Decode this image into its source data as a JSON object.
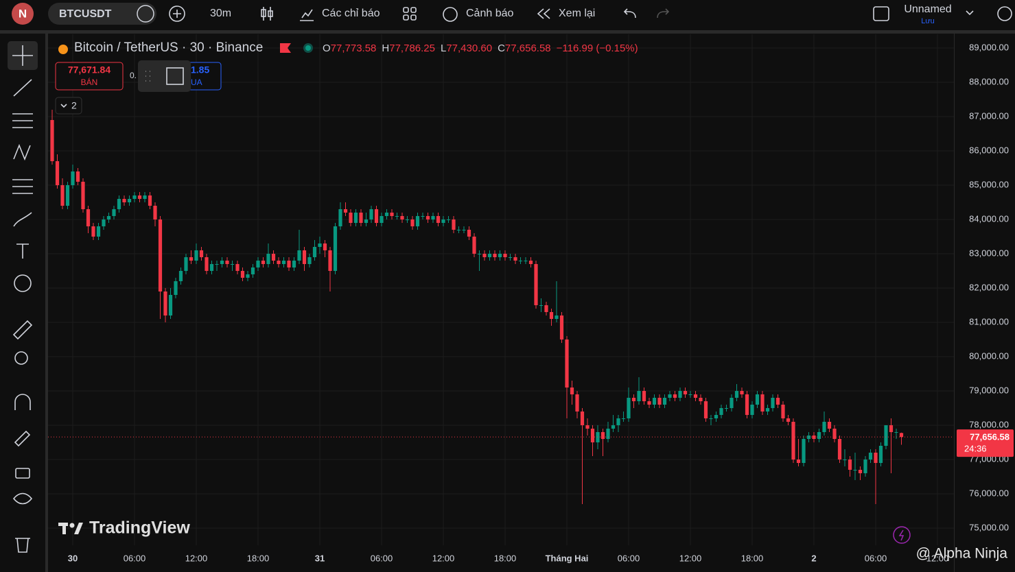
{
  "toolbar": {
    "avatar": "N",
    "symbol": "BTCUSDT",
    "interval": "30m",
    "indicators": "Các chỉ báo",
    "alerts": "Cảnh báo",
    "replay": "Xem lại",
    "layout_name": "Unnamed",
    "save": "Lưu"
  },
  "chart_data": {
    "type": "candlestick",
    "title": "Bitcoin / TetherUS · 30 · Binance",
    "ohlc_header": [
      {
        "key": "O",
        "value": "77,773.58"
      },
      {
        "key": "H",
        "value": "77,786.25"
      },
      {
        "key": "L",
        "value": "77,430.60"
      },
      {
        "key": "C",
        "value": "77,656.58"
      }
    ],
    "change": "−116.99 (−0.15%)",
    "sell": {
      "price": "77,671.84",
      "label": "BÁN"
    },
    "spread": "0.",
    "buy": {
      "price": "1.85",
      "label": "UA"
    },
    "indicator_count": "2",
    "up_color": "#089981",
    "down_color": "#f23645",
    "ohlc": [
      [
        86900,
        87200,
        85600,
        85700
      ],
      [
        85700,
        85900,
        84900,
        85000
      ],
      [
        85000,
        85200,
        84300,
        84400
      ],
      [
        84400,
        85100,
        84300,
        85000
      ],
      [
        85000,
        85600,
        84900,
        85400
      ],
      [
        85400,
        85500,
        85000,
        85100
      ],
      [
        85100,
        85200,
        84200,
        84300
      ],
      [
        84300,
        84400,
        83600,
        83800
      ],
      [
        83800,
        83900,
        83400,
        83500
      ],
      [
        83500,
        83900,
        83400,
        83800
      ],
      [
        83800,
        84100,
        83700,
        84000
      ],
      [
        84000,
        84200,
        83900,
        84100
      ],
      [
        84100,
        84400,
        84000,
        84300
      ],
      [
        84300,
        84700,
        84200,
        84600
      ],
      [
        84600,
        84700,
        84400,
        84500
      ],
      [
        84500,
        84700,
        84400,
        84600
      ],
      [
        84600,
        84800,
        84500,
        84700
      ],
      [
        84700,
        84800,
        84500,
        84600
      ],
      [
        84600,
        84800,
        84500,
        84700
      ],
      [
        84700,
        84800,
        84300,
        84400
      ],
      [
        84400,
        84500,
        83800,
        84000
      ],
      [
        84000,
        84100,
        81100,
        81900
      ],
      [
        81900,
        82000,
        81000,
        81200
      ],
      [
        81200,
        82000,
        81100,
        81800
      ],
      [
        81800,
        82300,
        81700,
        82200
      ],
      [
        82200,
        82600,
        82100,
        82500
      ],
      [
        82500,
        83000,
        82400,
        82900
      ],
      [
        82900,
        83100,
        82700,
        82800
      ],
      [
        82800,
        83300,
        82700,
        83100
      ],
      [
        83100,
        83200,
        82800,
        82900
      ],
      [
        82900,
        83000,
        82400,
        82500
      ],
      [
        82500,
        82800,
        82400,
        82700
      ],
      [
        82700,
        82800,
        82500,
        82700
      ],
      [
        82700,
        82900,
        82600,
        82800
      ],
      [
        82800,
        82900,
        82600,
        82700
      ],
      [
        82700,
        82800,
        82500,
        82700
      ],
      [
        82700,
        82800,
        82400,
        82500
      ],
      [
        82500,
        82600,
        82200,
        82300
      ],
      [
        82300,
        82500,
        82200,
        82400
      ],
      [
        82400,
        82700,
        82300,
        82600
      ],
      [
        82600,
        82900,
        82500,
        82800
      ],
      [
        82800,
        82900,
        82600,
        82700
      ],
      [
        82700,
        83300,
        82600,
        83000
      ],
      [
        83000,
        83100,
        82700,
        82800
      ],
      [
        82800,
        82900,
        82600,
        82700
      ],
      [
        82700,
        82900,
        82600,
        82800
      ],
      [
        82800,
        82900,
        82500,
        82600
      ],
      [
        82600,
        82900,
        82500,
        82800
      ],
      [
        82800,
        83700,
        82700,
        83100
      ],
      [
        83100,
        83200,
        82500,
        82700
      ],
      [
        82700,
        83000,
        82600,
        82900
      ],
      [
        82900,
        83400,
        82800,
        83200
      ],
      [
        83200,
        83500,
        83000,
        83300
      ],
      [
        83300,
        83400,
        82900,
        83100
      ],
      [
        83100,
        83200,
        81900,
        82500
      ],
      [
        82500,
        83900,
        82400,
        83800
      ],
      [
        83800,
        84500,
        83700,
        84300
      ],
      [
        84300,
        84500,
        84100,
        84200
      ],
      [
        84200,
        84300,
        83800,
        83900
      ],
      [
        83900,
        84300,
        83800,
        84200
      ],
      [
        84200,
        84300,
        83800,
        83900
      ],
      [
        83900,
        84200,
        83800,
        84000
      ],
      [
        84000,
        84400,
        83900,
        84300
      ],
      [
        84300,
        84400,
        83800,
        83900
      ],
      [
        83900,
        84200,
        83800,
        84100
      ],
      [
        84100,
        84300,
        84000,
        84200
      ],
      [
        84200,
        84300,
        84000,
        84100
      ],
      [
        84100,
        84200,
        84000,
        84100
      ],
      [
        84100,
        84200,
        83900,
        84000
      ],
      [
        84000,
        84100,
        83900,
        84000
      ],
      [
        84000,
        84100,
        83700,
        83800
      ],
      [
        83800,
        84200,
        83700,
        84100
      ],
      [
        84100,
        84200,
        84000,
        84100
      ],
      [
        84100,
        84200,
        83900,
        84000
      ],
      [
        84000,
        84200,
        83900,
        84100
      ],
      [
        84100,
        84200,
        83800,
        83900
      ],
      [
        83900,
        84100,
        83800,
        84000
      ],
      [
        84000,
        84100,
        83900,
        84000
      ],
      [
        84000,
        84100,
        83600,
        83700
      ],
      [
        83700,
        83800,
        83600,
        83700
      ],
      [
        83700,
        83800,
        83600,
        83700
      ],
      [
        83700,
        83800,
        83400,
        83500
      ],
      [
        83500,
        83600,
        82900,
        83000
      ],
      [
        83000,
        83100,
        82500,
        83000
      ],
      [
        83000,
        83100,
        82800,
        82900
      ],
      [
        82900,
        83100,
        82800,
        83000
      ],
      [
        83000,
        83100,
        82800,
        82900
      ],
      [
        82900,
        83100,
        82800,
        83000
      ],
      [
        83000,
        83100,
        82800,
        82900
      ],
      [
        82900,
        83000,
        82800,
        82900
      ],
      [
        82900,
        83000,
        82700,
        82800
      ],
      [
        82800,
        82900,
        82700,
        82800
      ],
      [
        82800,
        82900,
        82700,
        82800
      ],
      [
        82800,
        82900,
        82600,
        82700
      ],
      [
        82700,
        82800,
        81400,
        81500
      ],
      [
        81500,
        81700,
        81300,
        81500
      ],
      [
        81500,
        81600,
        81200,
        81300
      ],
      [
        81300,
        81400,
        80900,
        81100
      ],
      [
        81100,
        82200,
        81000,
        81200
      ],
      [
        81200,
        81300,
        80400,
        80500
      ],
      [
        80500,
        80600,
        78200,
        79100
      ],
      [
        79100,
        79300,
        78600,
        78900
      ],
      [
        78900,
        79000,
        78200,
        78400
      ],
      [
        78400,
        78500,
        75700,
        78000
      ],
      [
        78000,
        78200,
        77700,
        77900
      ],
      [
        77900,
        78000,
        77100,
        77500
      ],
      [
        77500,
        78000,
        77300,
        77800
      ],
      [
        77800,
        77900,
        77100,
        77600
      ],
      [
        77600,
        78100,
        77500,
        77900
      ],
      [
        77900,
        78300,
        77800,
        78000
      ],
      [
        78000,
        78300,
        77800,
        78200
      ],
      [
        78200,
        78400,
        78100,
        78200
      ],
      [
        78200,
        79100,
        78100,
        78800
      ],
      [
        78800,
        78900,
        78500,
        78700
      ],
      [
        78700,
        79400,
        78600,
        79000
      ],
      [
        79000,
        79100,
        78600,
        78700
      ],
      [
        78700,
        78800,
        78500,
        78600
      ],
      [
        78600,
        78900,
        78500,
        78800
      ],
      [
        78800,
        78900,
        78500,
        78600
      ],
      [
        78600,
        78900,
        78500,
        78800
      ],
      [
        78800,
        79000,
        78700,
        78900
      ],
      [
        78900,
        79000,
        78700,
        78800
      ],
      [
        78800,
        79100,
        78700,
        79000
      ],
      [
        79000,
        79100,
        78800,
        78900
      ],
      [
        78900,
        79000,
        78800,
        78900
      ],
      [
        78900,
        79000,
        78700,
        78800
      ],
      [
        78800,
        78900,
        78600,
        78700
      ],
      [
        78700,
        78800,
        78100,
        78200
      ],
      [
        78200,
        78300,
        78000,
        78200
      ],
      [
        78200,
        78400,
        78100,
        78300
      ],
      [
        78300,
        78600,
        78200,
        78500
      ],
      [
        78500,
        78600,
        78400,
        78500
      ],
      [
        78500,
        78900,
        78400,
        78800
      ],
      [
        78800,
        79200,
        78700,
        79000
      ],
      [
        79000,
        79100,
        78800,
        78900
      ],
      [
        78900,
        79000,
        78200,
        78300
      ],
      [
        78300,
        78700,
        78200,
        78600
      ],
      [
        78600,
        79000,
        78500,
        78900
      ],
      [
        78900,
        79000,
        78300,
        78400
      ],
      [
        78400,
        78600,
        78300,
        78500
      ],
      [
        78500,
        78900,
        78400,
        78800
      ],
      [
        78800,
        78900,
        78500,
        78600
      ],
      [
        78600,
        78700,
        78100,
        78200
      ],
      [
        78200,
        78300,
        78000,
        78100
      ],
      [
        78100,
        78200,
        76900,
        77000
      ],
      [
        77000,
        77600,
        76800,
        76900
      ],
      [
        76900,
        77700,
        76800,
        77600
      ],
      [
        77600,
        77800,
        77500,
        77700
      ],
      [
        77700,
        77800,
        77500,
        77600
      ],
      [
        77600,
        77900,
        77500,
        77800
      ],
      [
        77800,
        78400,
        77700,
        78100
      ],
      [
        78100,
        78200,
        77800,
        77900
      ],
      [
        77900,
        78000,
        77500,
        77600
      ],
      [
        77600,
        77700,
        76900,
        77000
      ],
      [
        77000,
        77300,
        76800,
        77000
      ],
      [
        77000,
        77100,
        76500,
        76700
      ],
      [
        76700,
        77200,
        76400,
        76700
      ],
      [
        76700,
        76800,
        76400,
        76600
      ],
      [
        76600,
        77100,
        76500,
        77000
      ],
      [
        77000,
        77300,
        76900,
        77200
      ],
      [
        77200,
        77300,
        75700,
        76900
      ],
      [
        76900,
        77500,
        76800,
        77400
      ],
      [
        77400,
        78000,
        77300,
        78000
      ],
      [
        78000,
        78200,
        76600,
        77800
      ],
      [
        77800,
        77900,
        77600,
        77800
      ],
      [
        77773.58,
        77786.25,
        77430.6,
        77656.58
      ]
    ],
    "ylim": [
      74500,
      89400
    ],
    "yticks": [
      {
        "value": 75000,
        "label": "75,000.00"
      },
      {
        "value": 76000,
        "label": "76,000.00"
      },
      {
        "value": 77000,
        "label": "77,000.00"
      },
      {
        "value": 78000,
        "label": "78,000.00"
      },
      {
        "value": 79000,
        "label": "79,000.00"
      },
      {
        "value": 80000,
        "label": "80,000.00"
      },
      {
        "value": 81000,
        "label": "81,000.00"
      },
      {
        "value": 82000,
        "label": "82,000.00"
      },
      {
        "value": 83000,
        "label": "83,000.00"
      },
      {
        "value": 84000,
        "label": "84,000.00"
      },
      {
        "value": 85000,
        "label": "85,000.00"
      },
      {
        "value": 86000,
        "label": "86,000.00"
      },
      {
        "value": 87000,
        "label": "87,000.00"
      },
      {
        "value": 88000,
        "label": "88,000.00"
      },
      {
        "value": 89000,
        "label": "89,000.00"
      }
    ],
    "xticks": [
      {
        "value": 4,
        "label": "30"
      },
      {
        "value": 16,
        "label": "06:00"
      },
      {
        "value": 28,
        "label": "12:00"
      },
      {
        "value": 40,
        "label": "18:00"
      },
      {
        "value": 52,
        "label": "31"
      },
      {
        "value": 64,
        "label": "06:00"
      },
      {
        "value": 76,
        "label": "12:00"
      },
      {
        "value": 88,
        "label": "18:00"
      },
      {
        "value": 100,
        "label": "Tháng Hai"
      },
      {
        "value": 112,
        "label": "06:00"
      },
      {
        "value": 124,
        "label": "12:00"
      },
      {
        "value": 136,
        "label": "18:00"
      },
      {
        "value": 148,
        "label": "2"
      },
      {
        "value": 160,
        "label": "06:00"
      },
      {
        "value": 172,
        "label": "12:00"
      }
    ],
    "grid": true,
    "last_price": {
      "value": 77656.58,
      "label": "77,656.58",
      "countdown": "24:36"
    },
    "watermark": "TradingView"
  },
  "overlay": "@ Alpha Ninja"
}
